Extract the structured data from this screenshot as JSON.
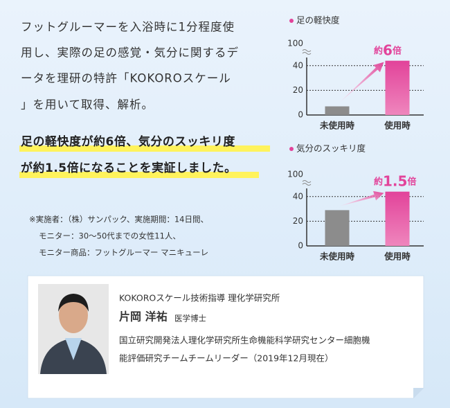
{
  "intro": [
    "フットグルーマーを入浴時に1分程度使",
    "用し、実際の足の感覚・気分に関するデ",
    "ータを理研の特許「KOKOROスケール",
    "」を用いて取得、解析。"
  ],
  "highlight": [
    "足の軽快度が約6倍、気分のスッキリ度",
    "が約1.5倍になることを実証しました。"
  ],
  "notes": [
    "※実施者：（株）サンパック、実施期間：14日間、",
    "モニター：30～50代までの女性11人、",
    "モニター商品：フットグルーマー マニキューレ"
  ],
  "chart_data": [
    {
      "type": "bar",
      "title": "足の軽快度",
      "categories": [
        "未使用時",
        "使用時"
      ],
      "values": [
        7,
        44
      ],
      "colors": [
        "#8c8c8c",
        "#e2439a"
      ],
      "ylim": [
        0,
        50
      ],
      "yticks": [
        0,
        20,
        40
      ],
      "break_tick": 100,
      "annotation": [
        "約",
        "6",
        "倍"
      ],
      "grid": true
    },
    {
      "type": "bar",
      "title": "気分のスッキリ度",
      "categories": [
        "未使用時",
        "使用時"
      ],
      "values": [
        29,
        44
      ],
      "colors": [
        "#8c8c8c",
        "#e2439a"
      ],
      "ylim": [
        0,
        50
      ],
      "yticks": [
        0,
        20,
        40
      ],
      "break_tick": 100,
      "annotation": [
        "約",
        "1.5",
        "倍"
      ],
      "grid": true
    }
  ],
  "profile": {
    "role": "KOKOROスケール技術指導 理化学研究所",
    "name": "片岡 洋祐",
    "degree": "医学博士",
    "affiliation": [
      "国立研究開発法人理化学研究所生命機能科学研究センター細胞機",
      "能評価研究チームチームリーダー（2019年12月現在）"
    ]
  }
}
